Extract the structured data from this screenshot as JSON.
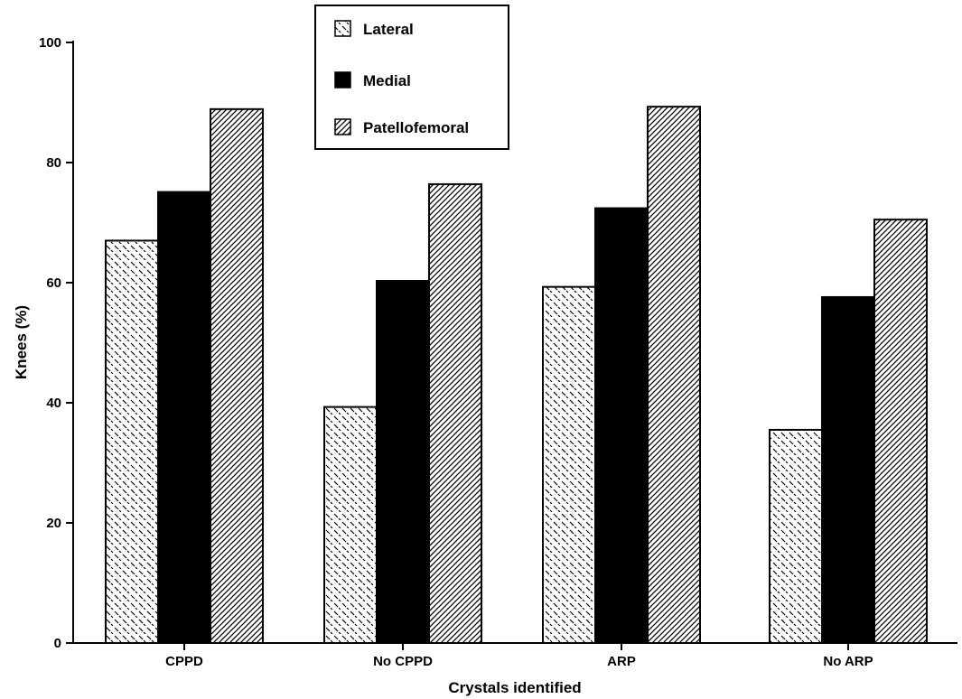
{
  "chart_data": {
    "type": "bar",
    "categories": [
      "CPPD",
      "No CPPD",
      "ARP",
      "No ARP"
    ],
    "series": [
      {
        "name": "Lateral",
        "values": [
          67,
          39.3,
          59.3,
          35.5
        ],
        "pattern": "dashes"
      },
      {
        "name": "Medial",
        "values": [
          75.1,
          60.3,
          72.4,
          57.6
        ],
        "pattern": "solid"
      },
      {
        "name": "Patellofemoral",
        "values": [
          88.9,
          76.4,
          89.3,
          70.5
        ],
        "pattern": "hatch"
      }
    ],
    "xlabel": "Crystals identified",
    "ylabel": "Knees (%)",
    "ylim": [
      0,
      100
    ],
    "yticks": [
      0,
      20,
      40,
      60,
      80,
      100
    ],
    "grid": false,
    "legend_position": "top-center"
  }
}
